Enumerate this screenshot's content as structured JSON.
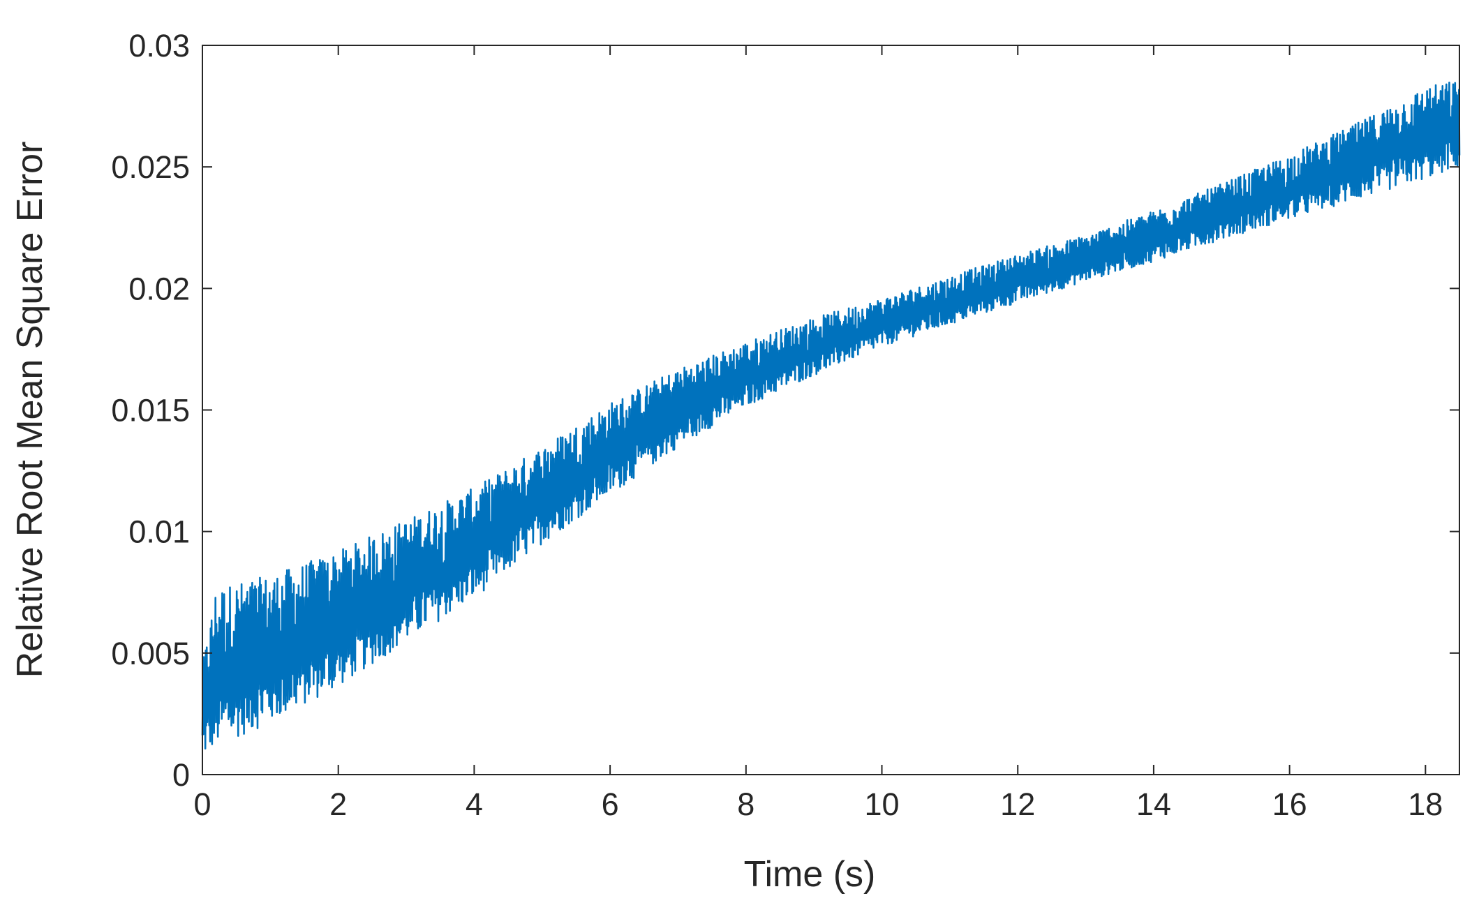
{
  "chart_data": {
    "type": "line",
    "title": "",
    "xlabel": "Time (s)",
    "ylabel": "Relative Root Mean Square Error",
    "xlim": [
      0,
      18.5
    ],
    "ylim": [
      0,
      0.03
    ],
    "xticks": [
      0,
      2,
      4,
      6,
      8,
      10,
      12,
      14,
      16,
      18
    ],
    "xtick_labels": [
      "0",
      "2",
      "4",
      "6",
      "8",
      "10",
      "12",
      "14",
      "16",
      "18"
    ],
    "yticks": [
      0,
      0.005,
      0.01,
      0.015,
      0.02,
      0.025,
      0.03
    ],
    "ytick_labels": [
      "0",
      "0.005",
      "0.01",
      "0.015",
      "0.02",
      "0.025",
      "0.03"
    ],
    "grid": false,
    "box": true,
    "series": [
      {
        "color": "#0072BD",
        "description": "dense oscillating signal; envelope values below (time s, lower bound, upper bound)",
        "envelope": {
          "x": [
            0.0,
            0.2,
            1.0,
            2.0,
            3.0,
            4.0,
            5.0,
            6.0,
            7.0,
            8.0,
            9.0,
            10.0,
            11.0,
            12.0,
            13.0,
            14.0,
            15.0,
            16.0,
            17.0,
            18.0,
            18.5
          ],
          "lower": [
            0.0005,
            0.0008,
            0.0018,
            0.0033,
            0.0052,
            0.007,
            0.0093,
            0.0113,
            0.0133,
            0.015,
            0.0163,
            0.0175,
            0.0184,
            0.0193,
            0.0202,
            0.021,
            0.0219,
            0.0227,
            0.0235,
            0.0243,
            0.0248
          ],
          "upper": [
            0.0045,
            0.0077,
            0.0082,
            0.0092,
            0.0105,
            0.0118,
            0.0135,
            0.0153,
            0.0167,
            0.0178,
            0.0188,
            0.0196,
            0.0205,
            0.0214,
            0.0222,
            0.0232,
            0.0243,
            0.0255,
            0.0268,
            0.0283,
            0.0286
          ]
        }
      }
    ]
  }
}
